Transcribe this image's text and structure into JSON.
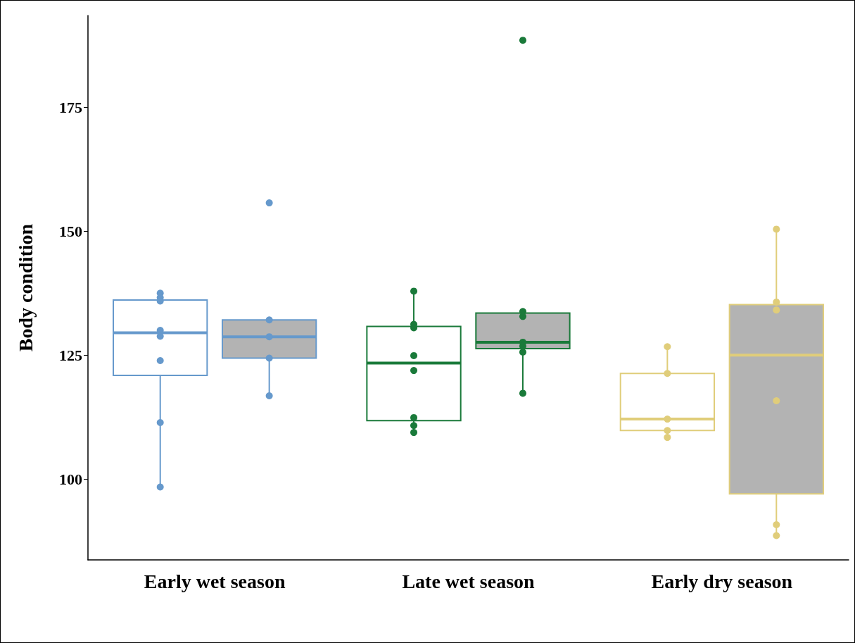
{
  "chart_data": {
    "type": "box",
    "categories": [
      "Early wet season",
      "Late wet season",
      "Early dry season"
    ],
    "ylabel": "Body condition",
    "ylim": [
      83.7,
      193.5
    ],
    "yticks": [
      100,
      125,
      150,
      175
    ],
    "grid": false,
    "colors": [
      "#6699cc",
      "#1a7a3a",
      "#e0cd7a"
    ],
    "series": [
      {
        "color": "#ffffff",
        "boxes": [
          {
            "low": 98.6,
            "q1": 120.9,
            "median": 129.5,
            "q3": 136.1,
            "high": 137.5
          },
          {
            "low": 109.5,
            "q1": 111.8,
            "median": 123.4,
            "q3": 130.8,
            "high": 137.9
          },
          {
            "low": 108.4,
            "q1": 109.8,
            "median": 112.1,
            "q3": 121.3,
            "high": 126.7
          }
        ]
      },
      {
        "color": "#b3b3b3",
        "boxes": [
          {
            "low": 116.8,
            "q1": 124.4,
            "median": 128.7,
            "q3": 132.1,
            "high": 132.1
          },
          {
            "low": 117.5,
            "q1": 126.3,
            "median": 127.6,
            "q3": 133.5,
            "high": 133.5
          },
          {
            "low": 88.6,
            "q1": 97,
            "median": 125,
            "q3": 135.2,
            "high": 150.3
          }
        ]
      },
      {
        "type": "scatter",
        "x": [
          "Early wet season",
          "Early wet season",
          "Early wet season",
          "Early wet season",
          "Early wet season",
          "Early wet season",
          "Early wet season",
          "Early wet season",
          "Late wet season",
          "Late wet season",
          "Late wet season",
          "Late wet season",
          "Late wet season",
          "Late wet season",
          "Late wet season",
          "Late wet season",
          "Early dry season",
          "Early dry season",
          "Early dry season",
          "Early dry season",
          "Early dry season"
        ],
        "values": [
          137.5,
          136.6,
          135.9,
          130,
          128.8,
          123.9,
          111.4,
          98.4,
          137.9,
          131.2,
          130.5,
          124.9,
          121.9,
          112.4,
          110.8,
          109.4,
          126.7,
          121.3,
          112.1,
          109.8,
          108.4
        ],
        "colors": [
          "#6699cc",
          "#6699cc",
          "#6699cc",
          "#6699cc",
          "#6699cc",
          "#6699cc",
          "#6699cc",
          "#6699cc",
          "#1a7a3a",
          "#1a7a3a",
          "#1a7a3a",
          "#1a7a3a",
          "#1a7a3a",
          "#1a7a3a",
          "#1a7a3a",
          "#1a7a3a",
          "#e0cd7a",
          "#e0cd7a",
          "#e0cd7a",
          "#e0cd7a",
          "#e0cd7a"
        ]
      },
      {
        "type": "scatter",
        "x": [
          "Early wet season",
          "Early wet season",
          "Early wet season",
          "Early wet season",
          "Early wet season",
          "Late wet season",
          "Late wet season",
          "Late wet season",
          "Late wet season",
          "Late wet season",
          "Late wet season",
          "Late wet season",
          "Early dry season",
          "Early dry season",
          "Early dry season",
          "Early dry season",
          "Early dry season",
          "Early dry season"
        ],
        "values": [
          155.7,
          132.1,
          128.7,
          124.4,
          116.8,
          188.5,
          133.8,
          132.8,
          127.6,
          126.8,
          125.6,
          117.3,
          150.4,
          135.7,
          134.1,
          115.8,
          90.8,
          88.6
        ],
        "colors": [
          "#6699cc",
          "#6699cc",
          "#6699cc",
          "#6699cc",
          "#6699cc",
          "#1a7a3a",
          "#1a7a3a",
          "#1a7a3a",
          "#1a7a3a",
          "#1a7a3a",
          "#1a7a3a",
          "#1a7a3a",
          "#e0cd7a",
          "#e0cd7a",
          "#e0cd7a",
          "#e0cd7a",
          "#e0cd7a",
          "#e0cd7a"
        ]
      }
    ]
  }
}
